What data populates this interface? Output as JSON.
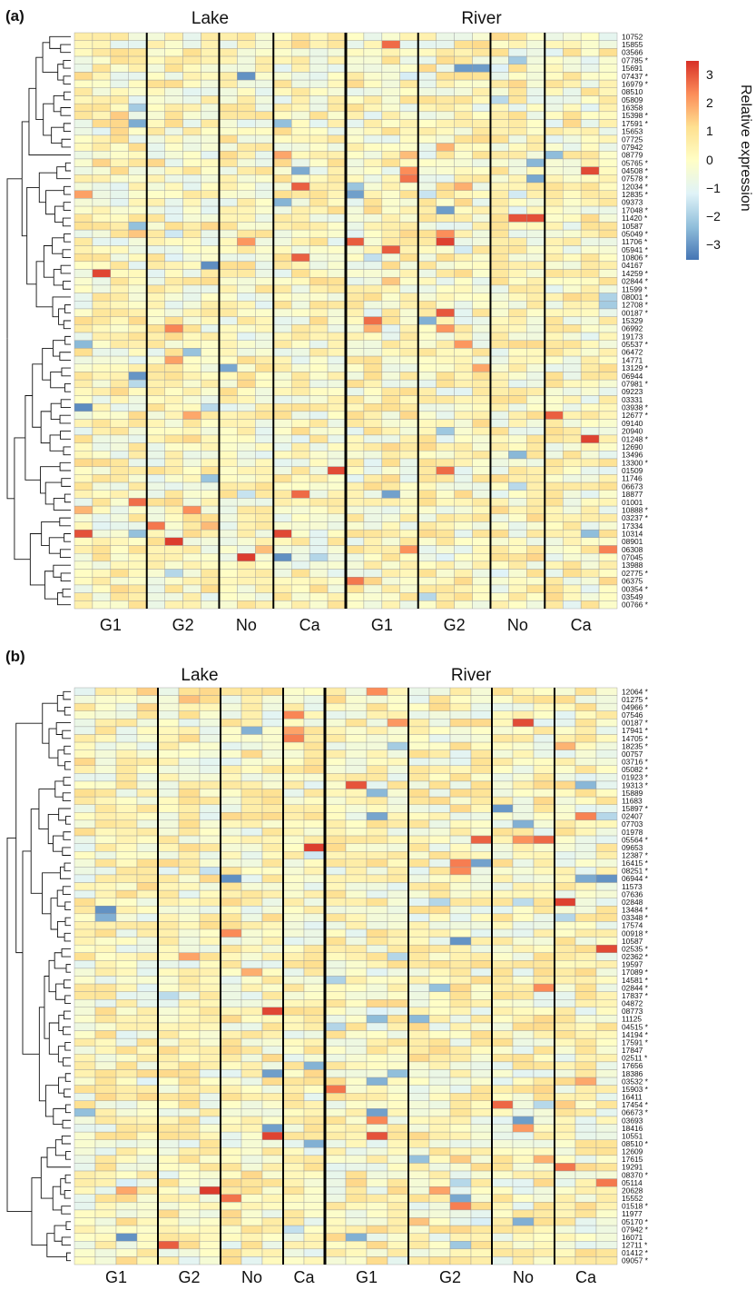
{
  "chart_data": [
    {
      "panel": "(a)",
      "type": "heatmap",
      "group_labels": [
        "Lake",
        "River"
      ],
      "condition_labels": [
        "G1",
        "G2",
        "No",
        "Ca",
        "G1",
        "G2",
        "No",
        "Ca"
      ],
      "columns_per_condition": [
        4,
        4,
        3,
        4,
        4,
        4,
        3,
        4
      ],
      "row_labels": [
        "10752",
        "15855",
        "03566",
        "07785 *",
        "15691",
        "07437 *",
        "16979 *",
        "08510",
        "05809",
        "16358",
        "15398 *",
        "17591 *",
        "15653",
        "07725",
        "07942",
        "08779",
        "05765 *",
        "04508 *",
        "07578 *",
        "12034 *",
        "12835 *",
        "09373",
        "17048 *",
        "11420 *",
        "10587",
        "05049 *",
        "11706 *",
        "05941 *",
        "10806 *",
        "04167",
        "14259 *",
        "02844 *",
        "11599 *",
        "08001 *",
        "12708 *",
        "00187 *",
        "15329",
        "06992",
        "19173",
        "05537 *",
        "06472",
        "14771",
        "13129 *",
        "06944",
        "07981 *",
        "09223",
        "03331",
        "03938 *",
        "12677 *",
        "09140",
        "20940",
        "01248 *",
        "12690",
        "13496",
        "13300 *",
        "01509",
        "11746",
        "06673",
        "18877",
        "01001",
        "10888 *",
        "03237 *",
        "17334",
        "10314",
        "08901",
        "06308",
        "07045",
        "13988",
        "02775 *",
        "06375",
        "00354 *",
        "03549",
        "00766 *"
      ],
      "color_scale": {
        "min": -3,
        "max": 3,
        "low": "#4a6eb0",
        "mid": "#fffec6",
        "high": "#e31a1c"
      },
      "legend": {
        "title": "Relative expression",
        "ticks": [
          3,
          2,
          1,
          0,
          -1,
          -2,
          -3
        ]
      }
    },
    {
      "panel": "(b)",
      "type": "heatmap",
      "group_labels": [
        "Lake",
        "River"
      ],
      "condition_labels": [
        "G1",
        "G2",
        "No",
        "Ca",
        "G1",
        "G2",
        "No",
        "Ca"
      ],
      "columns_per_condition": [
        4,
        3,
        3,
        2,
        4,
        4,
        3,
        3
      ],
      "row_labels": [
        "12064 *",
        "01275 *",
        "04966 *",
        "07546",
        "00187 *",
        "17941 *",
        "14705 *",
        "18235 *",
        "00757",
        "03716 *",
        "05082 *",
        "01923 *",
        "19313 *",
        "15889",
        "11683",
        "15897 *",
        "02407",
        "07703",
        "01978",
        "05564 *",
        "09653",
        "12387 *",
        "16415 *",
        "08251 *",
        "06944 *",
        "11573",
        "07636",
        "02848",
        "13484 *",
        "03348 *",
        "17574",
        "00918 *",
        "10587",
        "02535 *",
        "02362 *",
        "19597",
        "17089 *",
        "14581 *",
        "02844 *",
        "17837 *",
        "04872",
        "08773",
        "11125",
        "04515 *",
        "14194 *",
        "17591 *",
        "17847",
        "02511 *",
        "17656",
        "18386",
        "03532 *",
        "15903 *",
        "16411",
        "17454 *",
        "06673 *",
        "03693",
        "18416",
        "10551",
        "08510 *",
        "12609",
        "17615",
        "19291",
        "08370 *",
        "05114",
        "20628",
        "15552",
        "01518 *",
        "11977",
        "05170 *",
        "07942 *",
        "16071",
        "12711 *",
        "01412 *",
        "09057 *"
      ],
      "color_scale": {
        "min": -3,
        "max": 3,
        "low": "#4a6eb0",
        "mid": "#fffec6",
        "high": "#e31a1c"
      }
    }
  ]
}
